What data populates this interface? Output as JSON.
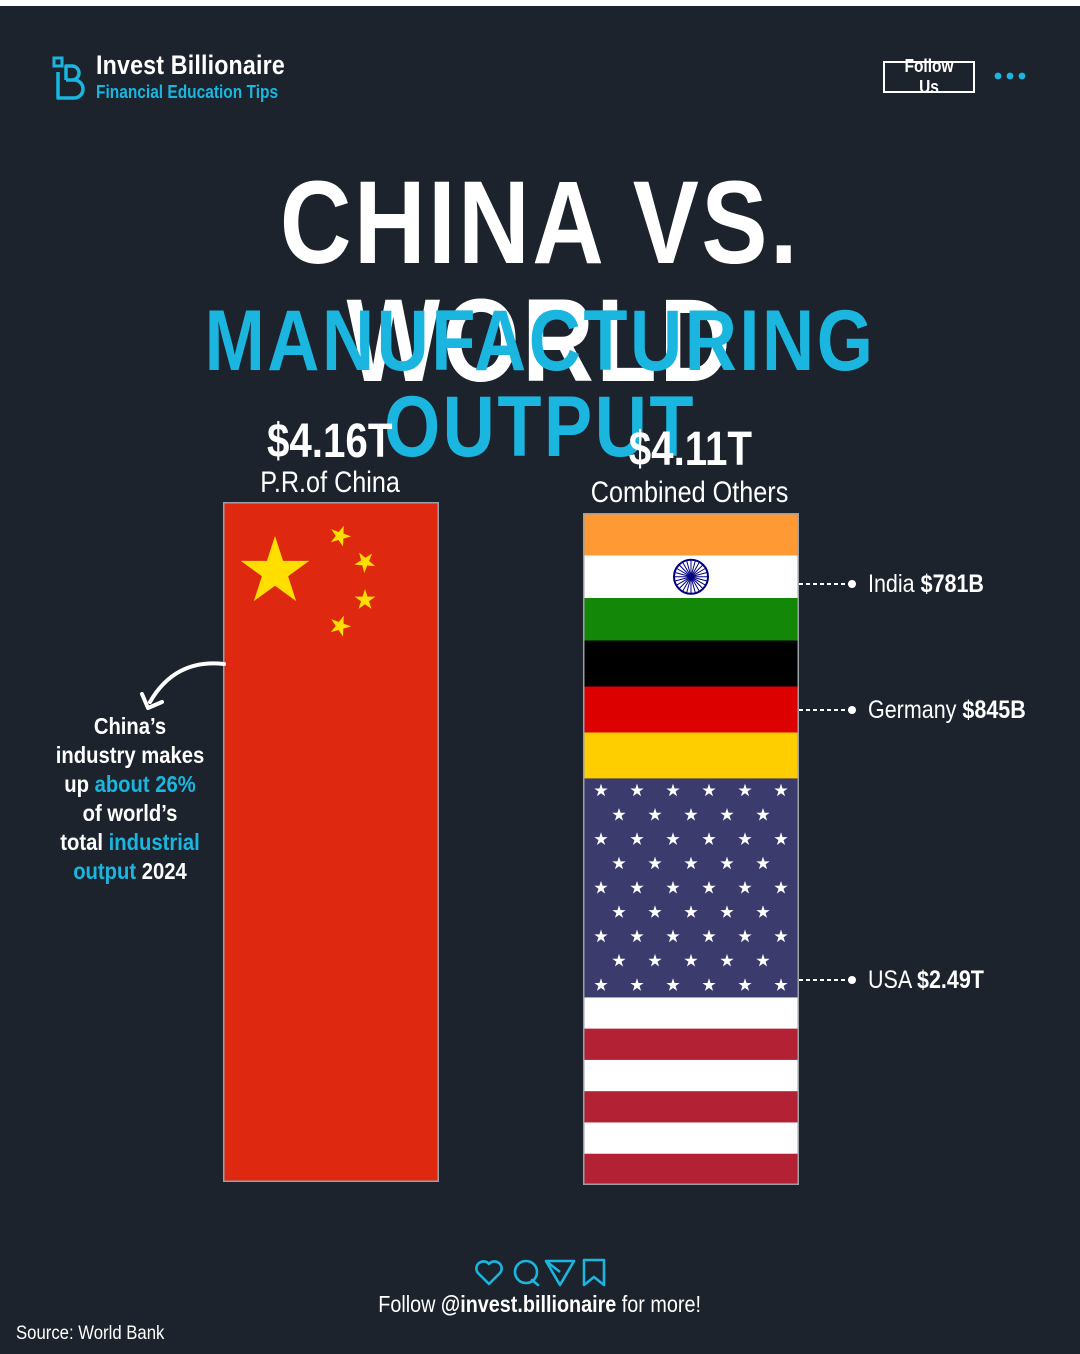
{
  "header": {
    "brand_name": "Invest Billionaire",
    "brand_tagline": "Financial Education Tips",
    "follow_label": "Follow Us",
    "more_icon": "ellipsis-icon"
  },
  "title": {
    "line1": "CHINA VS. WORLD",
    "line2": "MANUFACTURING OUTPUT"
  },
  "chart_data": {
    "type": "bar",
    "title": "CHINA VS. WORLD MANUFACTURING OUTPUT",
    "xlabel": "",
    "ylabel": "",
    "categories": [
      "P.R.of China",
      "Combined Others"
    ],
    "value_labels": [
      "$4.16T",
      "$4.11T"
    ],
    "values": [
      4.16,
      4.11
    ],
    "stacked_segments": [
      {
        "name": "India",
        "label": "$781B",
        "value": 0.781
      },
      {
        "name": "Germany",
        "label": "$845B",
        "value": 0.845
      },
      {
        "name": "USA",
        "label": "$2.49T",
        "value": 2.49
      }
    ],
    "colors": {
      "china_red": "#de2910",
      "china_star": "#ffde00",
      "india_saffron": "#ff9933",
      "india_green": "#138808",
      "india_chakra": "#000080",
      "germany_black": "#000000",
      "germany_red": "#dd0000",
      "germany_gold": "#ffce00",
      "usa_red": "#b22234",
      "usa_blue": "#3c3b6e",
      "accent_cyan": "#1ab6e0",
      "background": "#1c232c"
    }
  },
  "callout": {
    "w1": "China’s",
    "w2": "industry makes",
    "w3a": "up",
    "w3b": "about 26%",
    "w4": "of world’s",
    "w5a": "total",
    "w5b": "industrial",
    "w6a": "output",
    "w6b": "2024"
  },
  "labels": {
    "india_name": "India",
    "india_value": "$781B",
    "germany_name": "Germany",
    "germany_value": "$845B",
    "usa_name": "USA",
    "usa_value": "$2.49T"
  },
  "footer": {
    "icons": [
      "heart-icon",
      "comment-icon",
      "share-icon",
      "bookmark-icon"
    ],
    "follow_prefix": "Follow",
    "handle": "@invest.billionaire",
    "follow_suffix": "for more!",
    "source": "Source: World Bank"
  }
}
